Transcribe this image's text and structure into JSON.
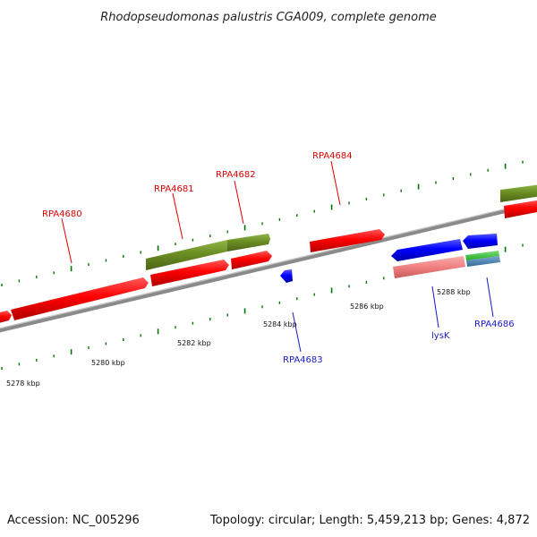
{
  "title": "Rhodopseudomonas palustris CGA009, complete genome",
  "footer": {
    "accession": "Accession: NC_005296",
    "summary": "Topology: circular; Length: 5,459,213 bp; Genes: 4,872"
  },
  "colors": {
    "forward_cds": "#ff0000",
    "reverse_cds": "#0000ff",
    "olive_feature": "#6b8e23",
    "pink_feature": "#f08080",
    "green_feature": "#33cc33",
    "steelblue_feature": "#4682b4",
    "backbone": "#808080",
    "tick": "#007700"
  },
  "scale_labels": [
    "5278 kbp",
    "5280 kbp",
    "5282 kbp",
    "5284 kbp",
    "5286 kbp",
    "5288 kbp"
  ],
  "gene_labels_top": [
    "RPA4680",
    "RPA4681",
    "RPA4682",
    "RPA4684"
  ],
  "gene_labels_bottom": [
    "RPA4683",
    "lysK",
    "RPA4686"
  ]
}
